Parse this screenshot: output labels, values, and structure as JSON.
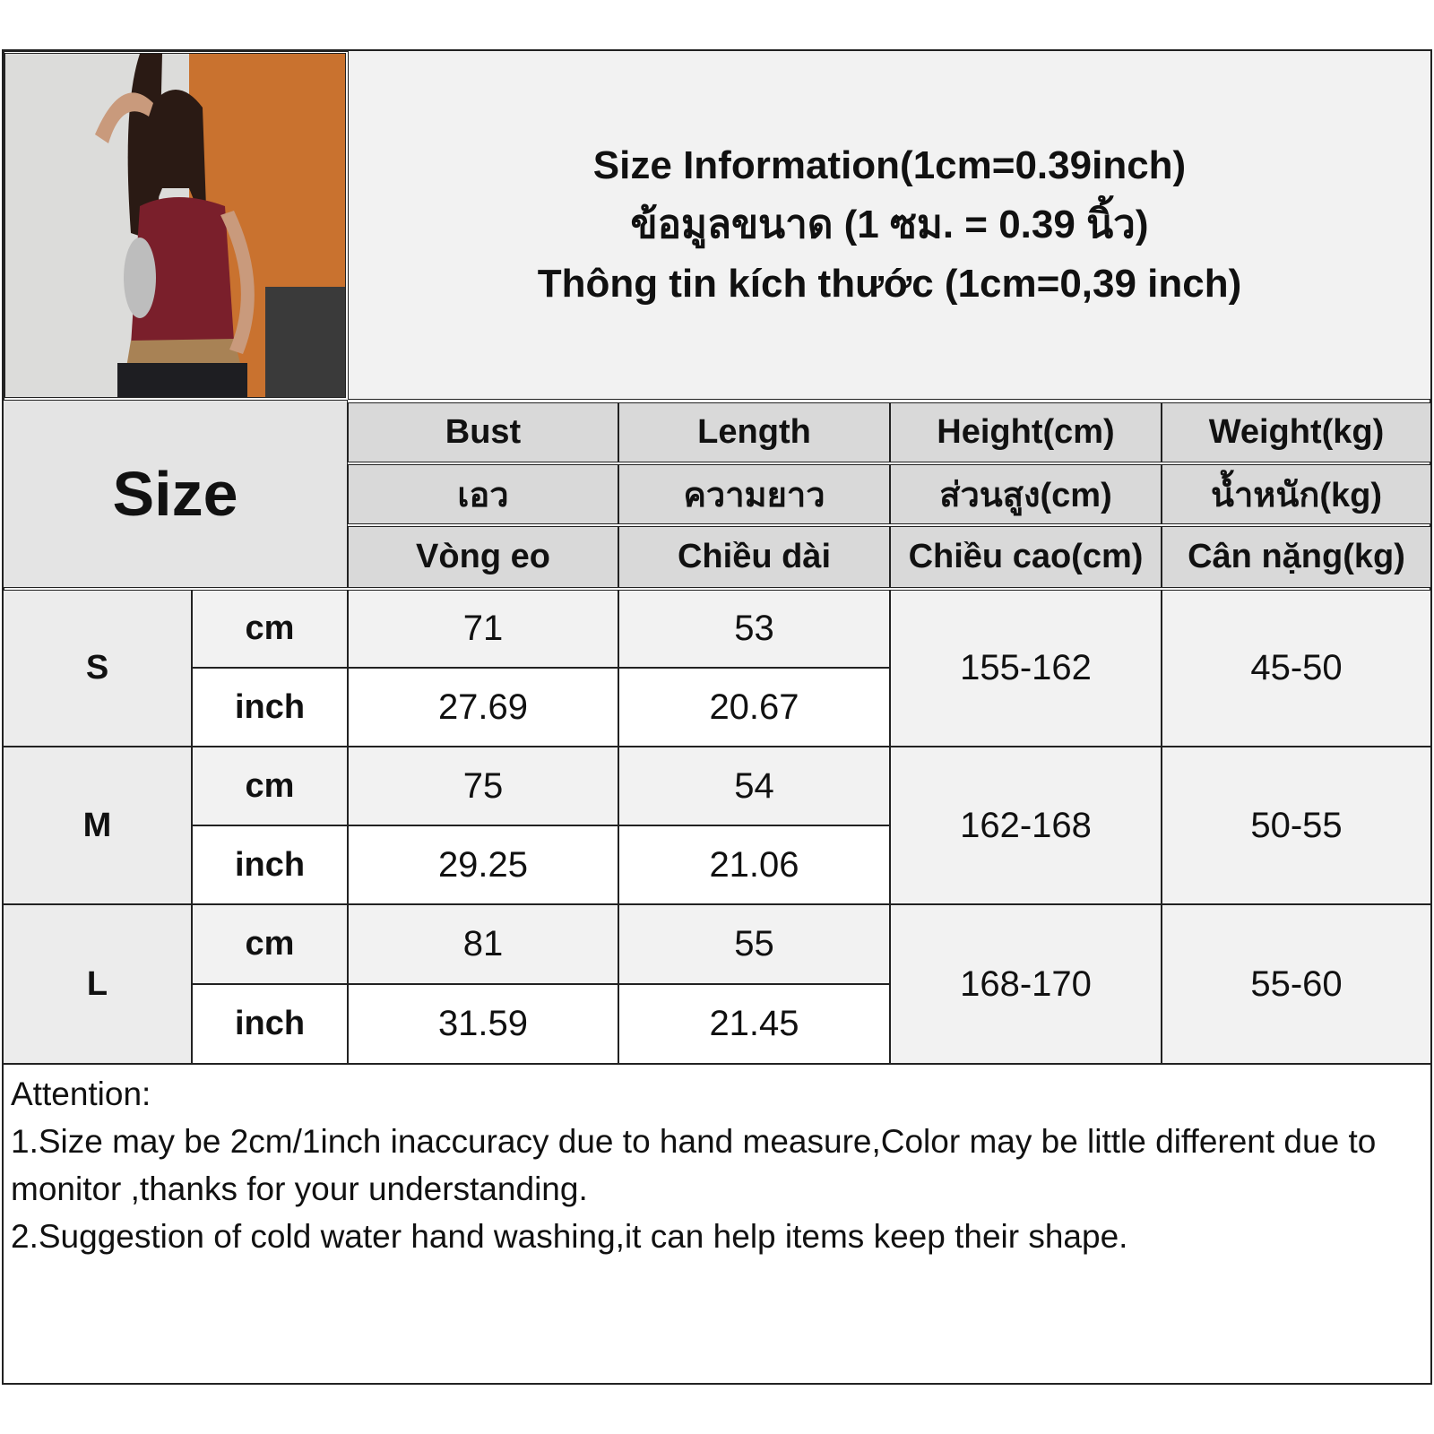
{
  "title": {
    "line1": "Size Information(1cm=0.39inch)",
    "line2": "ข้อมูลขนาด (1 ซม. = 0.39 นิ้ว)",
    "line3": "Thông tin kích thước (1cm=0,39 inch)"
  },
  "size_header": "Size",
  "columns": [
    {
      "en": "Bust",
      "th": "เอว",
      "vi": "Vòng eo"
    },
    {
      "en": "Length",
      "th": "ความยาว",
      "vi": "Chiều dài"
    },
    {
      "en": "Height(cm)",
      "th": "ส่วนสูง(cm)",
      "vi": "Chiều cao(cm)"
    },
    {
      "en": "Weight(kg)",
      "th": "น้ำหนัก(kg)",
      "vi": "Cân nặng(kg)"
    }
  ],
  "rows": [
    {
      "size": "S",
      "cm_label": "cm",
      "inch_label": "inch",
      "bust_cm": "71",
      "bust_inch": "27.69",
      "length_cm": "53",
      "length_inch": "20.67",
      "height": "155-162",
      "weight": "45-50"
    },
    {
      "size": "M",
      "cm_label": "cm",
      "inch_label": "inch",
      "bust_cm": "75",
      "bust_inch": "29.25",
      "length_cm": "54",
      "length_inch": "21.06",
      "height": "162-168",
      "weight": "50-55"
    },
    {
      "size": "L",
      "cm_label": "cm",
      "inch_label": "inch",
      "bust_cm": "81",
      "bust_inch": "31.59",
      "length_cm": "55",
      "length_inch": "21.45",
      "height": "168-170",
      "weight": "55-60"
    }
  ],
  "notes": {
    "heading": "Attention:",
    "note1": "1.Size may be 2cm/1inch inaccuracy due to hand measure,Color may be little different due to monitor ,thanks for your understanding.",
    "note2": "2.Suggestion of cold water hand washing,it can help items keep their shape."
  },
  "colors": {
    "header_bg": "#d9d9d9",
    "light_bg": "#f2f2f2",
    "border": "#222222",
    "top_color": "#7a1f2b"
  }
}
